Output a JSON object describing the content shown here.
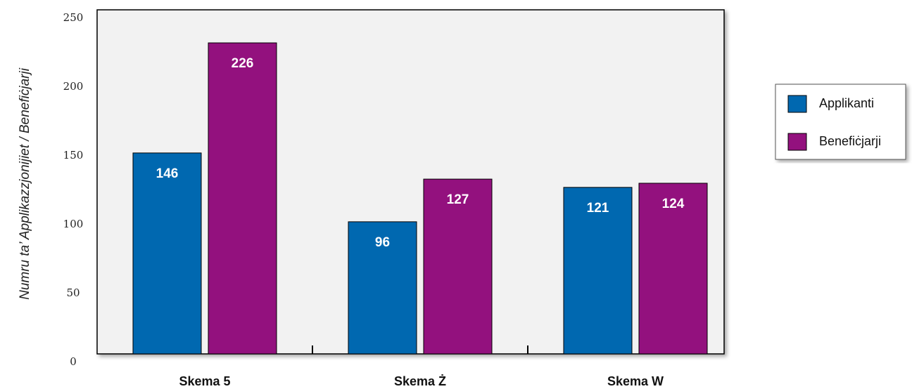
{
  "chart_data": {
    "type": "bar",
    "y_label": "Numru ta’ Applikazzjonijiet / Benefiċjarji",
    "categories": [
      "Skema 5",
      "Skema Ż",
      "Skema W"
    ],
    "series": [
      {
        "name": "Applikanti",
        "color": "#0068b0",
        "values": [
          146,
          96,
          121
        ]
      },
      {
        "name": "Benefiċjarji",
        "color": "#93117e",
        "values": [
          226,
          127,
          124
        ]
      }
    ],
    "ylim": [
      0,
      250
    ],
    "yticks": [
      0,
      50,
      100,
      150,
      200,
      250
    ],
    "legend": "right"
  }
}
